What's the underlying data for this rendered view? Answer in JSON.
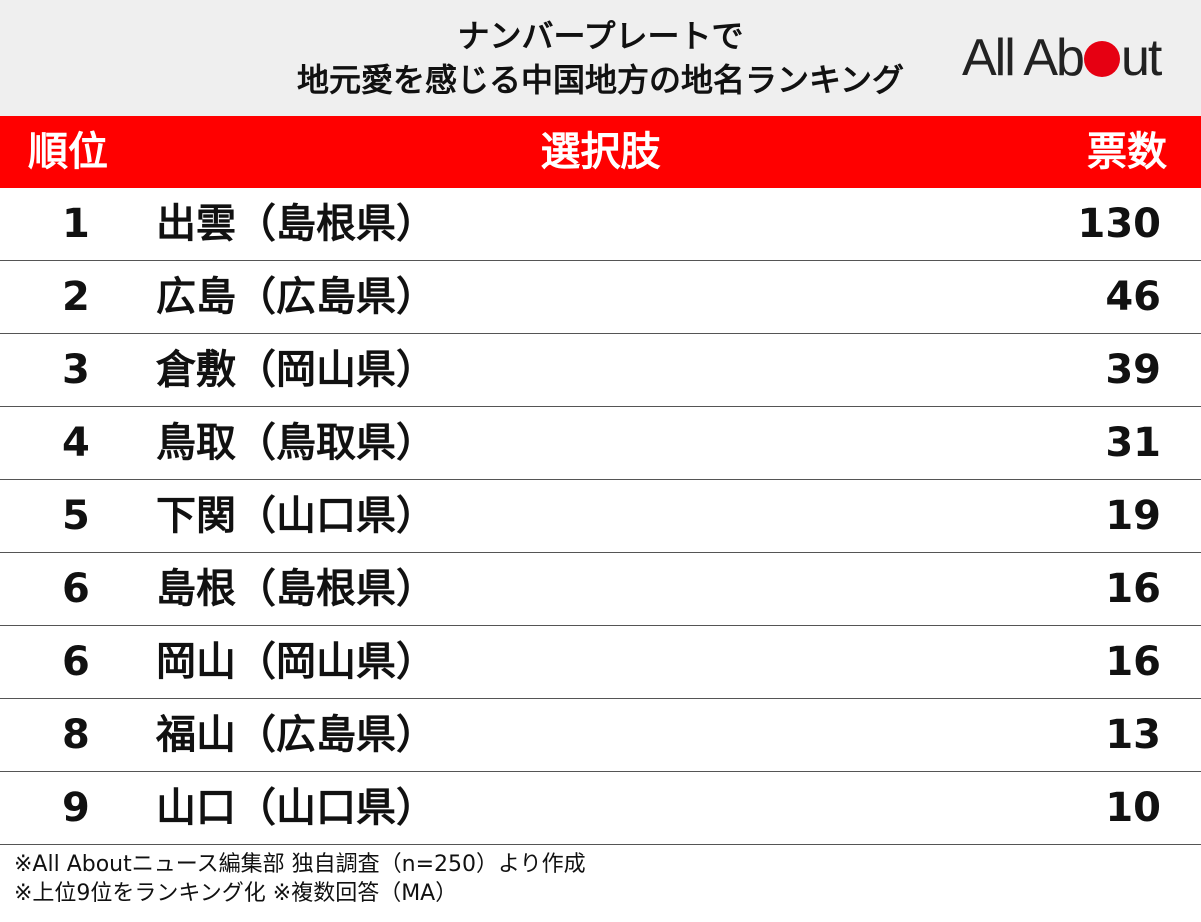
{
  "header": {
    "title_line1": "ナンバープレートで",
    "title_line2": "地元愛を感じる中国地方の地名ランキング",
    "logo": {
      "text_before": "All Ab",
      "text_after": "ut",
      "dot_color": "#e60012"
    }
  },
  "colors": {
    "header_bg": "#efefef",
    "table_header_bg": "#ff0000",
    "table_header_text": "#ffffff"
  },
  "chart_data": {
    "type": "table",
    "columns": [
      "順位",
      "選択肢",
      "票数"
    ],
    "rows": [
      {
        "rank": "1",
        "name": "出雲（島根県）",
        "votes": "130"
      },
      {
        "rank": "2",
        "name": "広島（広島県）",
        "votes": "46"
      },
      {
        "rank": "3",
        "name": "倉敷（岡山県）",
        "votes": "39"
      },
      {
        "rank": "4",
        "name": "鳥取（鳥取県）",
        "votes": "31"
      },
      {
        "rank": "5",
        "name": "下関（山口県）",
        "votes": "19"
      },
      {
        "rank": "6",
        "name": "島根（島根県）",
        "votes": "16"
      },
      {
        "rank": "6",
        "name": "岡山（岡山県）",
        "votes": "16"
      },
      {
        "rank": "8",
        "name": "福山（広島県）",
        "votes": "13"
      },
      {
        "rank": "9",
        "name": "山口（山口県）",
        "votes": "10"
      }
    ]
  },
  "notes": [
    "※All Aboutニュース編集部 独自調査（n=250）より作成",
    "※上位9位をランキング化 ※複数回答（MA）"
  ]
}
